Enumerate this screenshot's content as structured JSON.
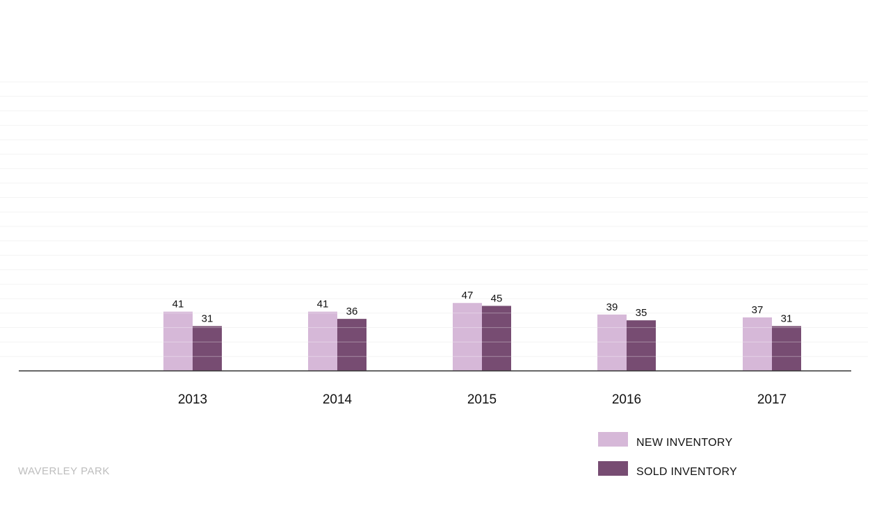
{
  "chart_data": {
    "type": "bar",
    "categories": [
      "2013",
      "2014",
      "2015",
      "2016",
      "2017"
    ],
    "series": [
      {
        "name": "NEW INVENTORY",
        "values": [
          41,
          41,
          47,
          39,
          37
        ],
        "color": "#d6b8d8"
      },
      {
        "name": "SOLD INVENTORY",
        "values": [
          31,
          36,
          45,
          35,
          31
        ],
        "color": "#774c72"
      }
    ],
    "ylim": [
      0,
      200
    ],
    "grid": true,
    "gridStep": 10,
    "legend": "bottom-right",
    "data_labels": true
  },
  "brand": "WAVERLEY PARK"
}
